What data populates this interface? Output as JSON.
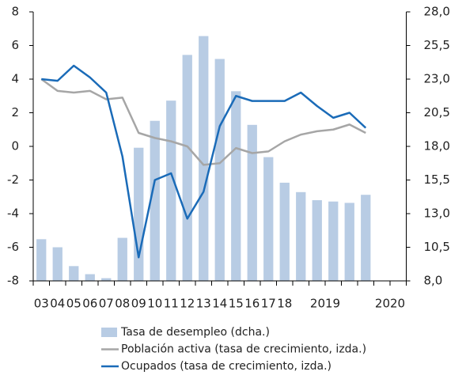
{
  "chart_data": {
    "type": "bar",
    "categories": [
      "03",
      "04",
      "05",
      "06",
      "07",
      "08",
      "09",
      "10",
      "11",
      "12",
      "13",
      "14",
      "15",
      "16",
      "17",
      "18",
      null,
      "2019",
      null,
      null,
      null,
      "2020",
      null
    ],
    "series": [
      {
        "name": "Tasa de desempleo (dcha.)",
        "type": "bar",
        "axis": "y2",
        "color": "#b8cce4",
        "values": [
          11.1,
          10.5,
          9.1,
          8.5,
          8.2,
          11.2,
          17.9,
          19.9,
          21.4,
          24.8,
          26.2,
          24.5,
          22.1,
          19.6,
          17.2,
          15.3,
          14.6,
          14.0,
          13.9,
          13.8,
          14.4,
          null,
          null
        ]
      },
      {
        "name": "Población activa (tasa de crecimiento, izda.)",
        "type": "line",
        "color": "#a6a6a6",
        "values": [
          4.0,
          3.3,
          3.2,
          3.3,
          2.8,
          2.9,
          0.8,
          0.5,
          0.3,
          0.0,
          -1.1,
          -1.0,
          -0.1,
          -0.4,
          -0.3,
          0.3,
          0.7,
          0.9,
          1.0,
          1.3,
          0.8,
          null,
          null
        ]
      },
      {
        "name": "Ocupados (tasa de  crecimiento, izda.)",
        "type": "line",
        "color": "#1a6bb8",
        "values": [
          4.0,
          3.9,
          4.8,
          4.1,
          3.2,
          -0.6,
          -6.6,
          -2.0,
          -1.6,
          -4.3,
          -2.7,
          1.2,
          3.0,
          2.7,
          2.7,
          2.7,
          3.2,
          2.4,
          1.7,
          2.0,
          1.1,
          null,
          null
        ]
      }
    ],
    "ylim": [
      -8,
      8
    ],
    "yticks": [
      -8,
      -6,
      -4,
      -2,
      0,
      2,
      4,
      6,
      8
    ],
    "y2lim": [
      8,
      28
    ],
    "y2ticks": [
      {
        "value": 8,
        "label": "8,0"
      },
      {
        "value": 10.5,
        "label": "10,5"
      },
      {
        "value": 13,
        "label": "13,0"
      },
      {
        "value": 15.5,
        "label": "15,5"
      },
      {
        "value": 18,
        "label": "18,0"
      },
      {
        "value": 20.5,
        "label": "20,5"
      },
      {
        "value": 23,
        "label": "23,0"
      },
      {
        "value": 25.5,
        "label": "25,5"
      },
      {
        "value": 28,
        "label": "28,0"
      }
    ],
    "grid": false,
    "legend": "bottom"
  }
}
